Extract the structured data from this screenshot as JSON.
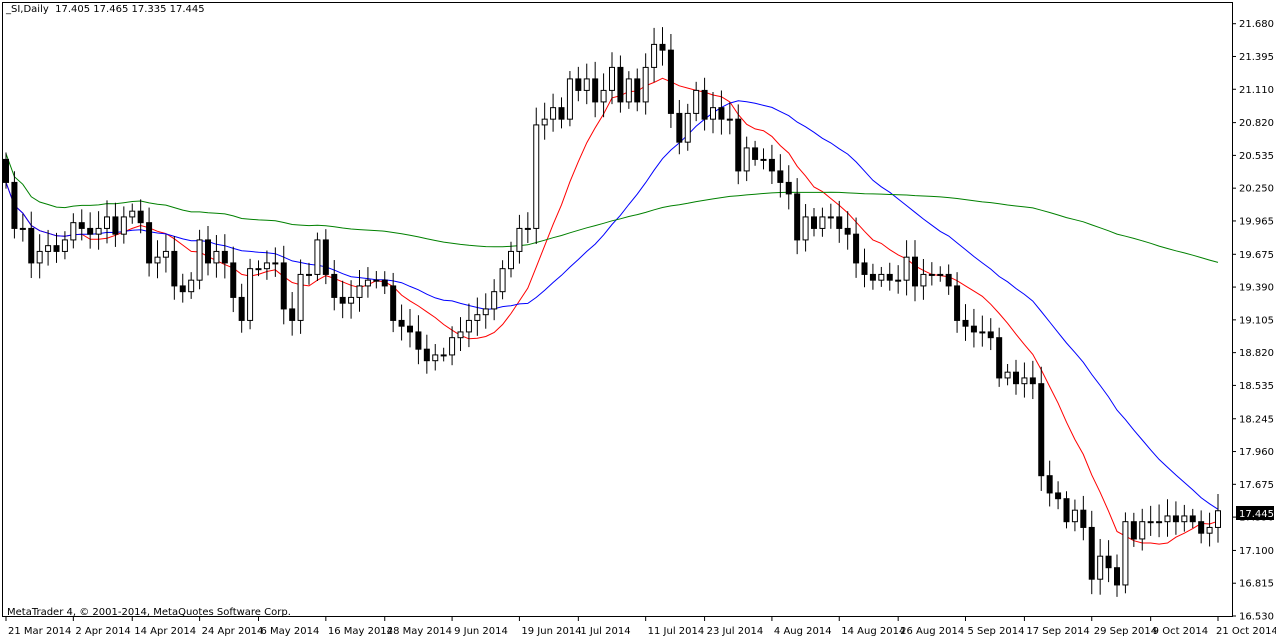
{
  "header": {
    "symbol": "_SI,Daily",
    "ohlc": "17.405 17.465 17.335 17.445"
  },
  "copyright": "MetaTrader 4, © 2001-2014, MetaQuotes Software Corp.",
  "current_price_label": "17.445",
  "colors": {
    "background": "#ffffff",
    "frame": "#000000",
    "bull_body": "#ffffff",
    "bear_body": "#000000",
    "ma_fast": "#ff0000",
    "ma_mid": "#0000ff",
    "ma_slow": "#008000"
  },
  "chart_data": {
    "type": "candlestick",
    "title": "",
    "symbol": "_SI",
    "timeframe": "Daily",
    "ylim": [
      16.53,
      21.86
    ],
    "y_ticks": [
      "21.680",
      "21.395",
      "21.110",
      "20.820",
      "20.535",
      "20.250",
      "19.965",
      "19.675",
      "19.390",
      "19.105",
      "18.820",
      "18.535",
      "18.245",
      "17.960",
      "17.675",
      "17.390",
      "17.100",
      "16.815",
      "16.530"
    ],
    "x_ticks": [
      "21 Mar 2014",
      "2 Apr 2014",
      "14 Apr 2014",
      "24 Apr 2014",
      "6 May 2014",
      "16 May 2014",
      "28 May 2014",
      "9 Jun 2014",
      "19 Jun 2014",
      "1 Jul 2014",
      "11 Jul 2014",
      "23 Jul 2014",
      "4 Aug 2014",
      "14 Aug 2014",
      "26 Aug 2014",
      "5 Sep 2014",
      "17 Sep 2014",
      "29 Sep 2014",
      "9 Oct 2014",
      "21 Oct 2014"
    ],
    "grid": false,
    "close": [
      20.3,
      19.9,
      19.9,
      19.6,
      19.7,
      19.75,
      19.7,
      19.8,
      19.95,
      19.9,
      19.85,
      19.9,
      20.0,
      19.85,
      20.0,
      20.05,
      19.95,
      19.6,
      19.65,
      19.7,
      19.4,
      19.35,
      19.45,
      19.8,
      19.6,
      19.7,
      19.6,
      19.3,
      19.1,
      19.55,
      19.55,
      19.6,
      19.6,
      19.2,
      19.1,
      19.5,
      19.5,
      19.8,
      19.5,
      19.3,
      19.25,
      19.3,
      19.4,
      19.45,
      19.45,
      19.4,
      19.1,
      19.05,
      19.0,
      18.85,
      18.75,
      18.8,
      18.8,
      18.95,
      19.0,
      19.1,
      19.15,
      19.2,
      19.35,
      19.55,
      19.7,
      19.9,
      19.9,
      20.8,
      20.85,
      20.95,
      20.85,
      21.2,
      21.1,
      21.2,
      21.0,
      21.1,
      21.3,
      21.0,
      21.2,
      21.0,
      21.3,
      21.5,
      21.45,
      20.9,
      20.65,
      20.9,
      21.1,
      20.85,
      20.95,
      20.85,
      20.85,
      20.4,
      20.6,
      20.5,
      20.5,
      20.4,
      20.3,
      20.2,
      19.8,
      20.0,
      19.9,
      20.0,
      20.0,
      19.9,
      19.85,
      19.6,
      19.5,
      19.45,
      19.5,
      19.45,
      19.45,
      19.65,
      19.4,
      19.5,
      19.5,
      19.5,
      19.4,
      19.1,
      19.05,
      19.0,
      19.0,
      18.95,
      18.6,
      18.65,
      18.55,
      18.6,
      18.55,
      17.75,
      17.6,
      17.55,
      17.35,
      17.45,
      17.3,
      16.85,
      17.05,
      16.95,
      16.8,
      17.35,
      17.2,
      17.35,
      17.35,
      17.35,
      17.4,
      17.35,
      17.4,
      17.35,
      17.25,
      17.3,
      17.445
    ]
  }
}
